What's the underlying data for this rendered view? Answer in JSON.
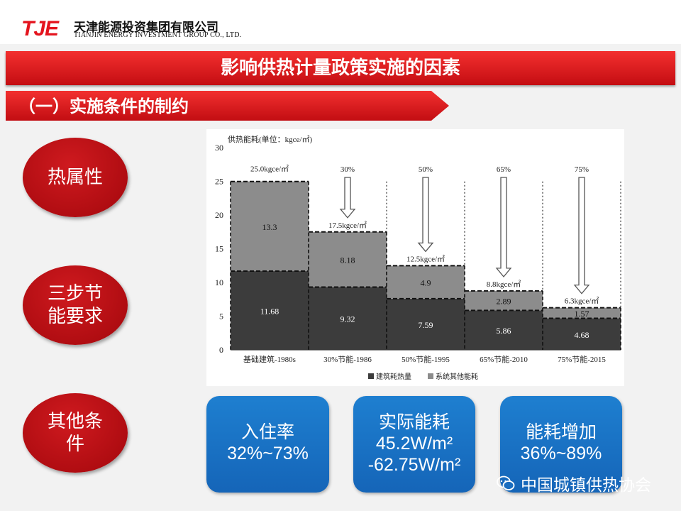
{
  "header": {
    "logo_mark": "TJE",
    "company_cn": "天津能源投资集团有限公司",
    "company_en": "TIANJIN ENERGY INVESTMENT GROUP CO., LTD."
  },
  "title": "影响供热计量政策实施的因素",
  "subtitle": "（一）实施条件的制约",
  "ovals": [
    "热属性",
    "三步节\n能要求",
    "其他条\n件"
  ],
  "boxes": [
    {
      "line1": "入住率",
      "line2": "32%~73%",
      "line3": ""
    },
    {
      "line1": "实际能耗",
      "line2": "45.2W/m²",
      "line3": "-62.75W/m²"
    },
    {
      "line1": "能耗增加",
      "line2": "36%~89%",
      "line3": ""
    }
  ],
  "watermark": "中国城镇供热协会",
  "colors": {
    "red": "#d8151b",
    "blue": "#1a72c4",
    "dark_bar": "#3c3c3c",
    "gray_bar": "#8c8c8c"
  },
  "chart_data": {
    "type": "bar",
    "stacked": true,
    "ylabel": "供热能耗(单位：kgce/㎡)",
    "ylim": [
      0,
      30
    ],
    "yticks": [
      0,
      5,
      10,
      15,
      20,
      25,
      30
    ],
    "categories": [
      "基础建筑-1980s",
      "30%节能-1986",
      "50%节能-1995",
      "65%节能-2010",
      "75%节能-2015"
    ],
    "series": [
      {
        "name": "建筑耗热量",
        "values": [
          11.68,
          9.32,
          7.59,
          5.86,
          4.68
        ]
      },
      {
        "name": "系统其他能耗",
        "values": [
          13.3,
          8.18,
          4.9,
          2.89,
          1.57
        ]
      }
    ],
    "totals": [
      "25.0kgce/㎡",
      "17.5kgce/㎡",
      "12.5kgce/㎡",
      "8.8kgce/㎡",
      "6.3kgce/㎡"
    ],
    "savings_labels": [
      "",
      "30%",
      "50%",
      "65%",
      "75%"
    ],
    "legend_position": "bottom"
  }
}
